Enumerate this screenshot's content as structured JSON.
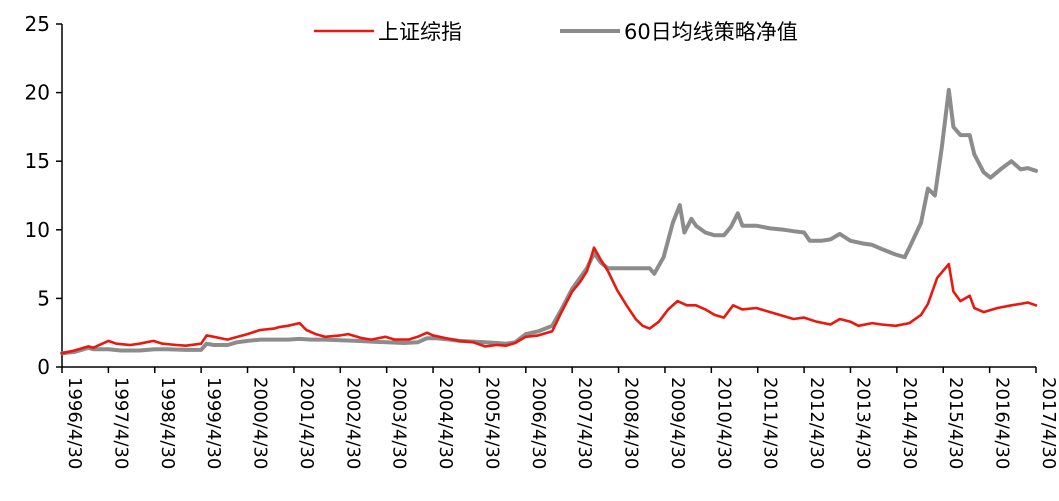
{
  "chart_data": {
    "type": "line",
    "title": "",
    "xlabel": "",
    "ylabel": "",
    "ylim": [
      0,
      25
    ],
    "yticks": [
      "0",
      "5",
      "10",
      "15",
      "20",
      "25"
    ],
    "x_tick_labels": [
      "1996/4/30",
      "1997/4/30",
      "1998/4/30",
      "1999/4/30",
      "2000/4/30",
      "2001/4/30",
      "2002/4/30",
      "2003/4/30",
      "2004/4/30",
      "2005/4/30",
      "2006/4/30",
      "2007/4/30",
      "2008/4/30",
      "2009/4/30",
      "2010/4/30",
      "2011/4/30",
      "2012/4/30",
      "2013/4/30",
      "2014/4/30",
      "2015/4/30",
      "2016/4/30",
      "2017/4/30"
    ],
    "xlim": [
      1996.33,
      2017.33
    ],
    "grid": false,
    "legend_position": "top",
    "series": [
      {
        "name": "上证综指",
        "color": "#e8190f",
        "points": [
          [
            1996.33,
            1.0
          ],
          [
            1996.6,
            1.2
          ],
          [
            1996.9,
            1.5
          ],
          [
            1997.0,
            1.4
          ],
          [
            1997.33,
            1.9
          ],
          [
            1997.5,
            1.7
          ],
          [
            1997.8,
            1.6
          ],
          [
            1998.0,
            1.7
          ],
          [
            1998.3,
            1.9
          ],
          [
            1998.5,
            1.7
          ],
          [
            1998.8,
            1.6
          ],
          [
            1999.0,
            1.55
          ],
          [
            1999.33,
            1.7
          ],
          [
            1999.45,
            2.3
          ],
          [
            1999.6,
            2.2
          ],
          [
            1999.9,
            2.0
          ],
          [
            2000.0,
            2.1
          ],
          [
            2000.33,
            2.4
          ],
          [
            2000.6,
            2.7
          ],
          [
            2000.9,
            2.8
          ],
          [
            2001.0,
            2.9
          ],
          [
            2001.2,
            3.0
          ],
          [
            2001.45,
            3.2
          ],
          [
            2001.6,
            2.7
          ],
          [
            2001.8,
            2.4
          ],
          [
            2002.0,
            2.2
          ],
          [
            2002.33,
            2.3
          ],
          [
            2002.5,
            2.4
          ],
          [
            2002.8,
            2.1
          ],
          [
            2003.0,
            2.0
          ],
          [
            2003.3,
            2.2
          ],
          [
            2003.5,
            2.0
          ],
          [
            2003.8,
            2.0
          ],
          [
            2004.0,
            2.2
          ],
          [
            2004.2,
            2.5
          ],
          [
            2004.33,
            2.3
          ],
          [
            2004.6,
            2.1
          ],
          [
            2004.9,
            1.9
          ],
          [
            2005.2,
            1.8
          ],
          [
            2005.45,
            1.5
          ],
          [
            2005.7,
            1.6
          ],
          [
            2005.9,
            1.55
          ],
          [
            2006.1,
            1.75
          ],
          [
            2006.33,
            2.2
          ],
          [
            2006.6,
            2.3
          ],
          [
            2006.9,
            2.6
          ],
          [
            2007.1,
            4.0
          ],
          [
            2007.33,
            5.5
          ],
          [
            2007.5,
            6.2
          ],
          [
            2007.65,
            7.0
          ],
          [
            2007.8,
            8.7
          ],
          [
            2007.95,
            7.8
          ],
          [
            2008.1,
            7.0
          ],
          [
            2008.3,
            5.6
          ],
          [
            2008.5,
            4.5
          ],
          [
            2008.7,
            3.5
          ],
          [
            2008.85,
            3.0
          ],
          [
            2009.0,
            2.8
          ],
          [
            2009.2,
            3.3
          ],
          [
            2009.4,
            4.2
          ],
          [
            2009.6,
            4.8
          ],
          [
            2009.8,
            4.5
          ],
          [
            2010.0,
            4.5
          ],
          [
            2010.2,
            4.2
          ],
          [
            2010.4,
            3.8
          ],
          [
            2010.6,
            3.6
          ],
          [
            2010.8,
            4.5
          ],
          [
            2011.0,
            4.2
          ],
          [
            2011.3,
            4.3
          ],
          [
            2011.6,
            4.0
          ],
          [
            2011.9,
            3.7
          ],
          [
            2012.1,
            3.5
          ],
          [
            2012.33,
            3.6
          ],
          [
            2012.6,
            3.3
          ],
          [
            2012.9,
            3.1
          ],
          [
            2013.1,
            3.5
          ],
          [
            2013.33,
            3.3
          ],
          [
            2013.5,
            3.0
          ],
          [
            2013.8,
            3.2
          ],
          [
            2014.0,
            3.1
          ],
          [
            2014.3,
            3.0
          ],
          [
            2014.6,
            3.2
          ],
          [
            2014.85,
            3.8
          ],
          [
            2015.0,
            4.6
          ],
          [
            2015.2,
            6.5
          ],
          [
            2015.45,
            7.5
          ],
          [
            2015.55,
            5.5
          ],
          [
            2015.7,
            4.8
          ],
          [
            2015.9,
            5.2
          ],
          [
            2016.0,
            4.3
          ],
          [
            2016.2,
            4.0
          ],
          [
            2016.5,
            4.3
          ],
          [
            2016.8,
            4.5
          ],
          [
            2017.0,
            4.6
          ],
          [
            2017.15,
            4.7
          ],
          [
            2017.33,
            4.5
          ]
        ]
      },
      {
        "name": "60日均线策略净值",
        "color": "#8c8c8c",
        "points": [
          [
            1996.33,
            1.0
          ],
          [
            1996.6,
            1.1
          ],
          [
            1996.9,
            1.4
          ],
          [
            1997.0,
            1.3
          ],
          [
            1997.33,
            1.3
          ],
          [
            1997.6,
            1.2
          ],
          [
            1998.0,
            1.2
          ],
          [
            1998.33,
            1.3
          ],
          [
            1998.6,
            1.3
          ],
          [
            1999.0,
            1.25
          ],
          [
            1999.33,
            1.25
          ],
          [
            1999.45,
            1.7
          ],
          [
            1999.6,
            1.6
          ],
          [
            1999.9,
            1.6
          ],
          [
            2000.1,
            1.8
          ],
          [
            2000.33,
            1.9
          ],
          [
            2000.6,
            2.0
          ],
          [
            2000.9,
            2.0
          ],
          [
            2001.2,
            2.0
          ],
          [
            2001.45,
            2.05
          ],
          [
            2001.7,
            2.0
          ],
          [
            2002.0,
            2.0
          ],
          [
            2002.33,
            1.95
          ],
          [
            2002.7,
            1.9
          ],
          [
            2003.0,
            1.85
          ],
          [
            2003.33,
            1.8
          ],
          [
            2003.7,
            1.75
          ],
          [
            2004.0,
            1.8
          ],
          [
            2004.2,
            2.1
          ],
          [
            2004.4,
            2.1
          ],
          [
            2004.7,
            2.0
          ],
          [
            2004.9,
            1.9
          ],
          [
            2005.2,
            1.85
          ],
          [
            2005.45,
            1.8
          ],
          [
            2005.7,
            1.75
          ],
          [
            2005.9,
            1.7
          ],
          [
            2006.1,
            1.8
          ],
          [
            2006.33,
            2.4
          ],
          [
            2006.6,
            2.6
          ],
          [
            2006.9,
            3.0
          ],
          [
            2007.1,
            4.2
          ],
          [
            2007.33,
            5.7
          ],
          [
            2007.5,
            6.5
          ],
          [
            2007.65,
            7.2
          ],
          [
            2007.8,
            8.3
          ],
          [
            2007.95,
            7.6
          ],
          [
            2008.1,
            7.2
          ],
          [
            2008.3,
            7.2
          ],
          [
            2008.6,
            7.2
          ],
          [
            2008.9,
            7.2
          ],
          [
            2009.0,
            7.2
          ],
          [
            2009.1,
            6.8
          ],
          [
            2009.3,
            8.0
          ],
          [
            2009.5,
            10.5
          ],
          [
            2009.65,
            11.8
          ],
          [
            2009.75,
            9.8
          ],
          [
            2009.9,
            10.8
          ],
          [
            2010.0,
            10.3
          ],
          [
            2010.2,
            9.8
          ],
          [
            2010.4,
            9.6
          ],
          [
            2010.6,
            9.6
          ],
          [
            2010.75,
            10.2
          ],
          [
            2010.9,
            11.2
          ],
          [
            2011.0,
            10.3
          ],
          [
            2011.3,
            10.3
          ],
          [
            2011.6,
            10.1
          ],
          [
            2011.9,
            10.0
          ],
          [
            2012.1,
            9.9
          ],
          [
            2012.33,
            9.8
          ],
          [
            2012.45,
            9.2
          ],
          [
            2012.7,
            9.2
          ],
          [
            2012.9,
            9.3
          ],
          [
            2013.1,
            9.7
          ],
          [
            2013.33,
            9.2
          ],
          [
            2013.6,
            9.0
          ],
          [
            2013.8,
            8.9
          ],
          [
            2014.0,
            8.6
          ],
          [
            2014.3,
            8.2
          ],
          [
            2014.5,
            8.0
          ],
          [
            2014.6,
            8.7
          ],
          [
            2014.85,
            10.5
          ],
          [
            2015.0,
            13.0
          ],
          [
            2015.15,
            12.5
          ],
          [
            2015.3,
            16.0
          ],
          [
            2015.45,
            20.2
          ],
          [
            2015.55,
            17.5
          ],
          [
            2015.7,
            16.9
          ],
          [
            2015.9,
            16.9
          ],
          [
            2016.0,
            15.5
          ],
          [
            2016.2,
            14.2
          ],
          [
            2016.35,
            13.8
          ],
          [
            2016.6,
            14.5
          ],
          [
            2016.8,
            15.0
          ],
          [
            2017.0,
            14.4
          ],
          [
            2017.15,
            14.5
          ],
          [
            2017.33,
            14.3
          ]
        ]
      }
    ]
  }
}
